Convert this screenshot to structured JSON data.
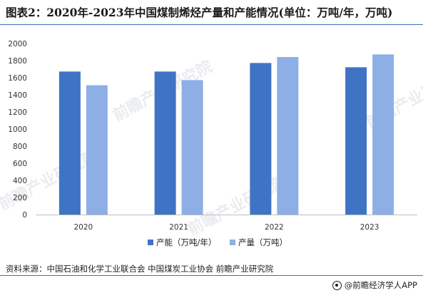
{
  "header": {
    "title": "图表2：2020年-2023年中国煤制烯烃产量和产能情况(单位：万吨/年，万吨)"
  },
  "footer": {
    "source": "资料来源：中国石油和化学工业联合会 中国煤炭工业协会 前瞻产业研究院",
    "app_label": "@前瞻经济学人APP"
  },
  "watermark": "前瞻产业研究院",
  "colors": {
    "capacity": "#3f74c4",
    "output": "#8eaee6",
    "axis": "#bfbfbf",
    "rule": "#3f6fb8"
  },
  "chart_data": {
    "type": "bar",
    "categories": [
      "2020",
      "2021",
      "2022",
      "2023"
    ],
    "series": [
      {
        "name": "产能（万吨/年）",
        "values": [
          1672,
          1672,
          1772,
          1722
        ],
        "color": "#3f74c4"
      },
      {
        "name": "产量（万吨）",
        "values": [
          1512,
          1572,
          1842,
          1872
        ],
        "color": "#8eaee6"
      }
    ],
    "ylim": [
      0,
      2000
    ],
    "yticks": [
      0,
      200,
      400,
      600,
      800,
      1000,
      1200,
      1400,
      1600,
      1800,
      2000
    ],
    "grid": false,
    "legend_position": "bottom-center"
  }
}
